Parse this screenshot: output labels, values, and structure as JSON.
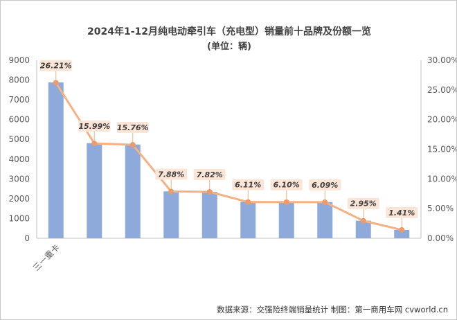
{
  "chart_data": {
    "type": "bar",
    "title": "2024年1-12月纯电动牵引车（充电型）销量前十品牌及份额一览",
    "subtitle": "(单位：辆)",
    "categories": [
      "三一重卡",
      "",
      "",
      "",
      "",
      "",
      "",
      "",
      "",
      ""
    ],
    "series": [
      {
        "type": "bar",
        "color": "#8eaadb",
        "values": [
          7880,
          4810,
          4740,
          2370,
          2350,
          1840,
          1830,
          1830,
          890,
          420
        ]
      },
      {
        "type": "line",
        "color": "#f4b183",
        "marker_color": "#ed9a6f",
        "axis": "right",
        "values": [
          26.21,
          15.99,
          15.76,
          7.88,
          7.82,
          6.11,
          6.1,
          6.09,
          2.95,
          1.41
        ],
        "labels": [
          "26.21%",
          "15.99%",
          "15.76%",
          "7.88%",
          "7.82%",
          "6.11%",
          "6.10%",
          "6.09%",
          "2.95%",
          "1.41%"
        ]
      }
    ],
    "y_left": {
      "min": 0,
      "max": 9000,
      "step": 1000,
      "ticks": [
        "0",
        "1000",
        "2000",
        "3000",
        "4000",
        "5000",
        "6000",
        "7000",
        "8000",
        "9000"
      ]
    },
    "y_right": {
      "min": 0,
      "max": 30,
      "step": 5,
      "ticks": [
        "0.00%",
        "5.00%",
        "10.00%",
        "15.00%",
        "20.00%",
        "25.00%",
        "30.00%"
      ]
    },
    "grid": false,
    "label_box_color": "#fbe5d6",
    "source": "数据来源：交强险终端销量统计  制图：第一商用车网 cvworld.cn"
  }
}
